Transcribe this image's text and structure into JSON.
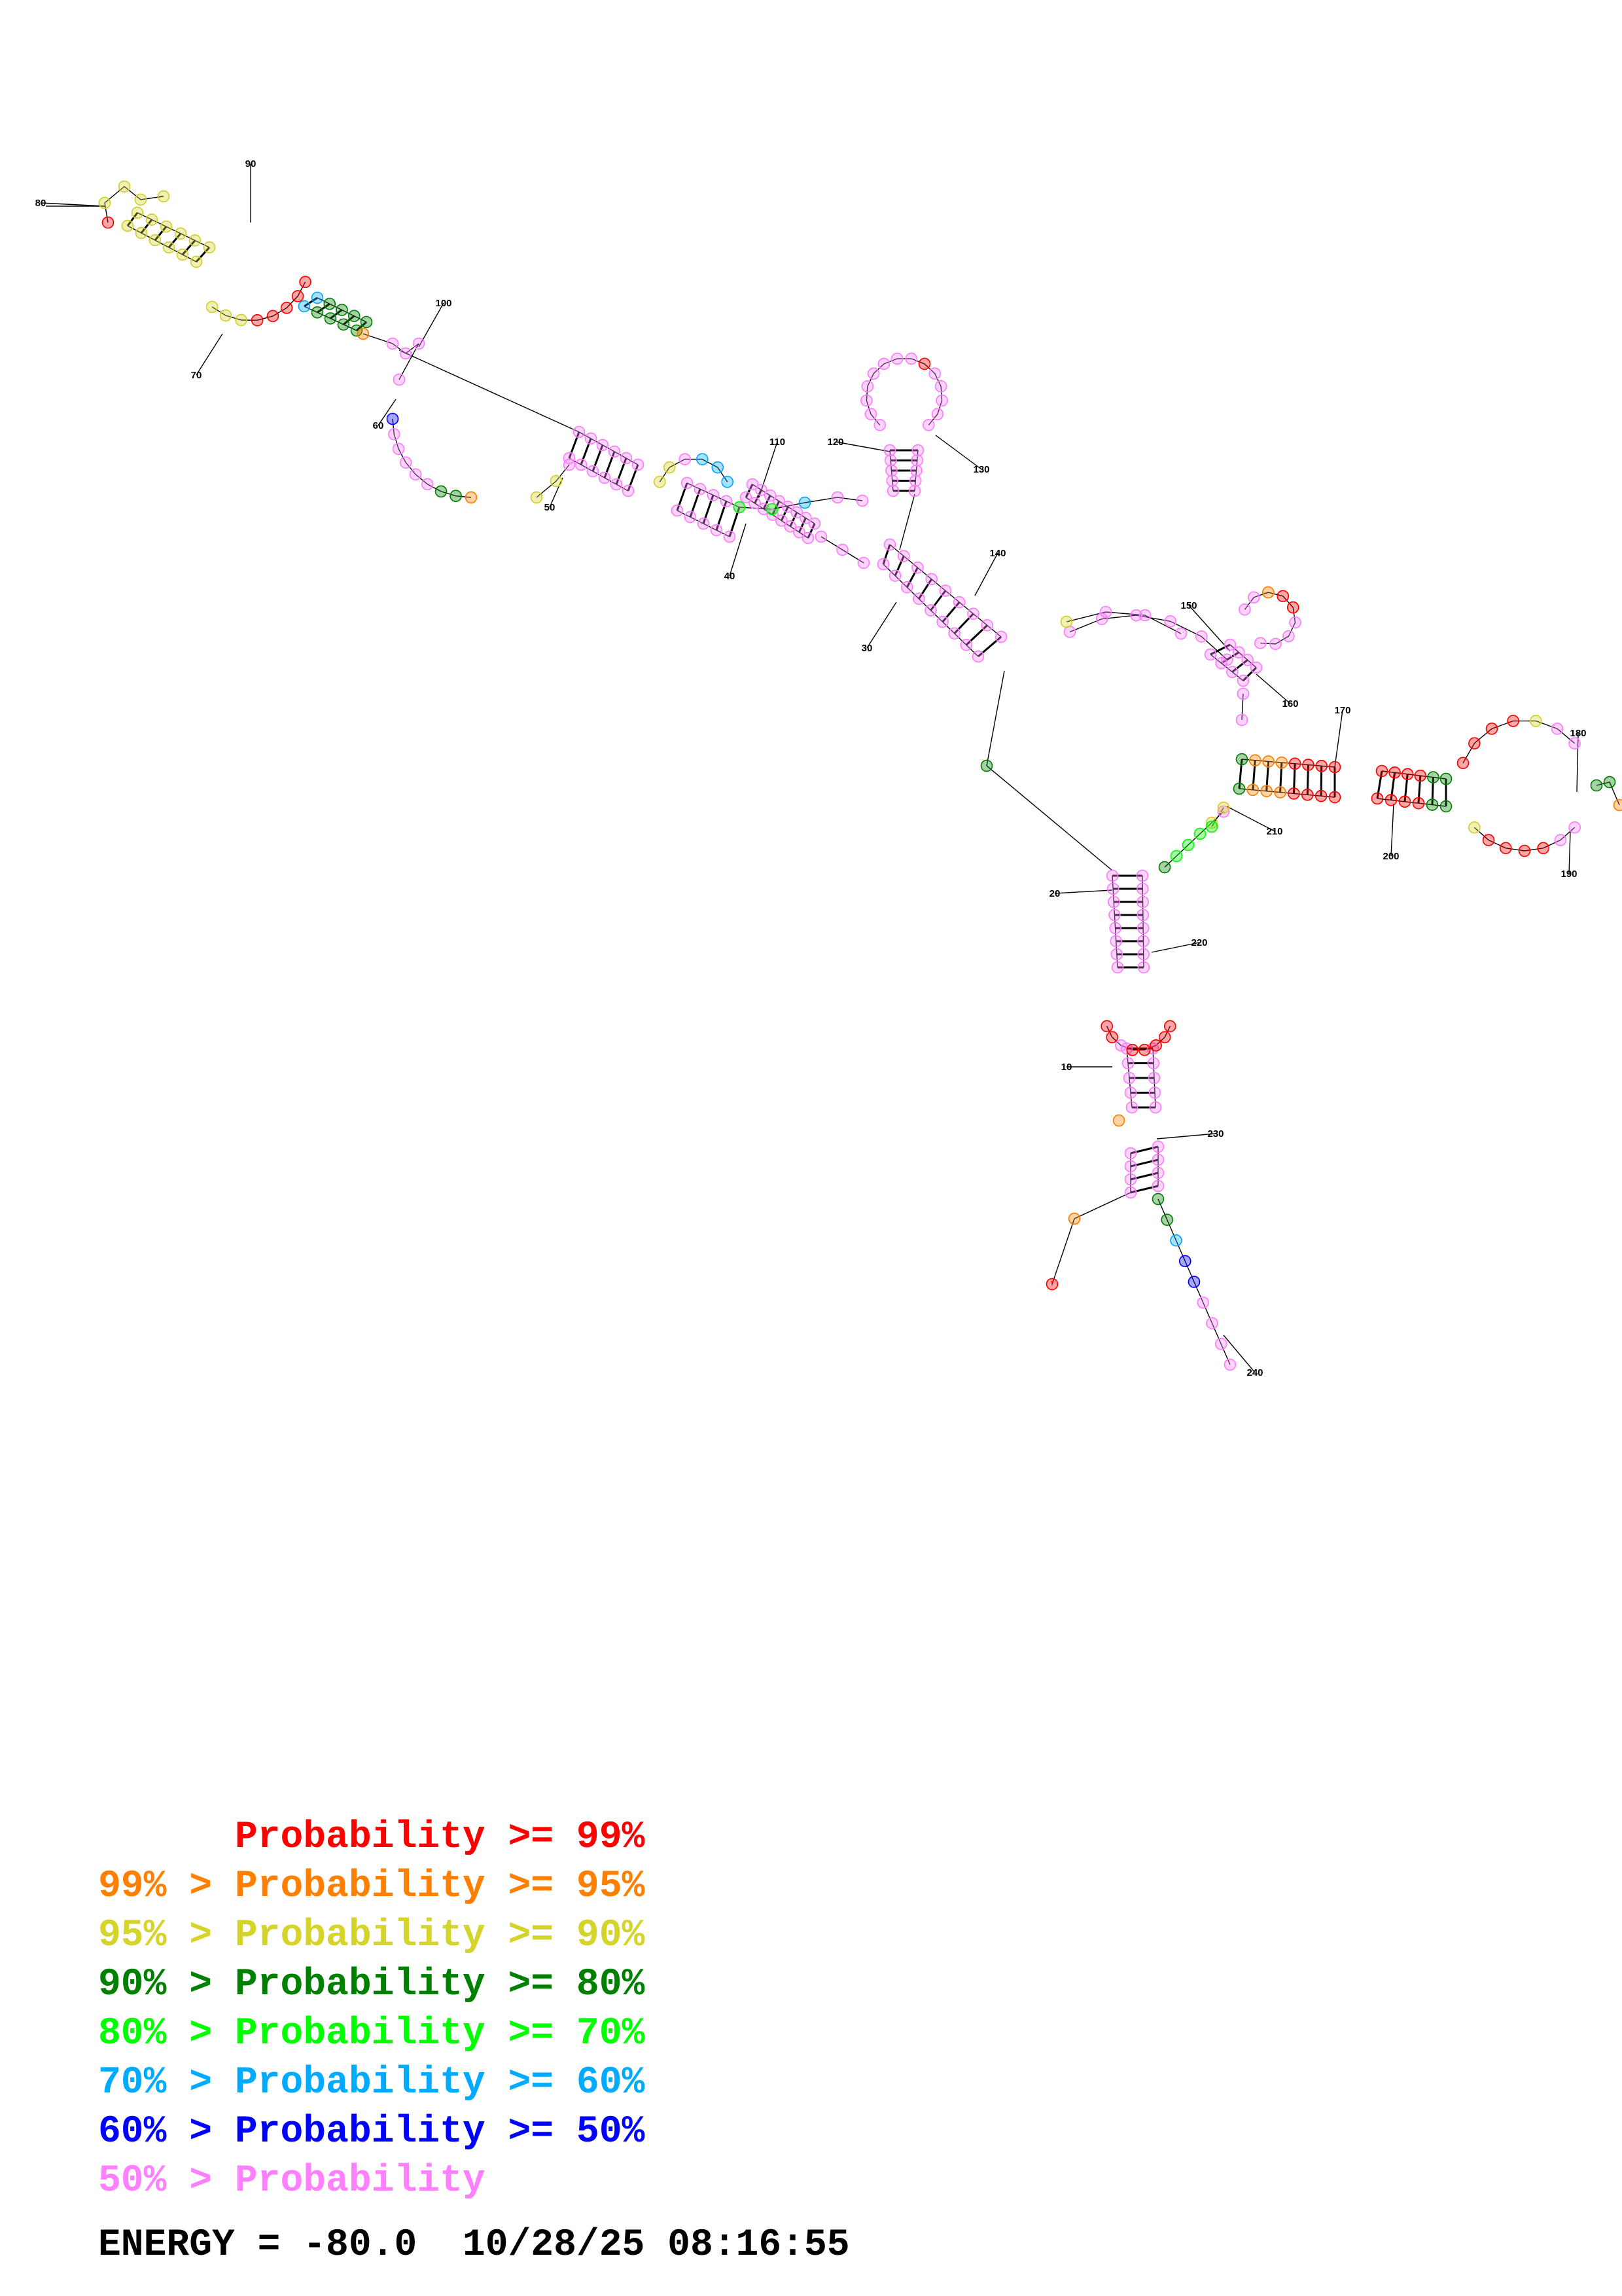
{
  "palette": {
    "p99": "#ff0000",
    "p95": "#ff8000",
    "p90": "#d4d42a",
    "p80": "#008000",
    "p70": "#00ff00",
    "p60": "#00aaff",
    "p50": "#0000ff",
    "plow": "#ff80ff"
  },
  "indices": [
    "10",
    "20",
    "30",
    "40",
    "50",
    "60",
    "70",
    "80",
    "90",
    "100",
    "110",
    "120",
    "130",
    "140",
    "150",
    "160",
    "170",
    "180",
    "190",
    "200",
    "210",
    "220",
    "230",
    "240"
  ],
  "legend": [
    {
      "text": "      Probability >= 99%",
      "color": "#ff0000"
    },
    {
      "text": "99% > Probability >= 95%",
      "color": "#ff8000"
    },
    {
      "text": "95% > Probability >= 90%",
      "color": "#d4d42a"
    },
    {
      "text": "90% > Probability >= 80%",
      "color": "#008000"
    },
    {
      "text": "80% > Probability >= 70%",
      "color": "#00ff00"
    },
    {
      "text": "70% > Probability >= 60%",
      "color": "#00aaff"
    },
    {
      "text": "60% > Probability >= 50%",
      "color": "#0000ff"
    },
    {
      "text": "50% > Probability",
      "color": "#ff80ff"
    }
  ],
  "energy_line": "ENERGY = -80.0  10/28/25 08:16:55"
}
